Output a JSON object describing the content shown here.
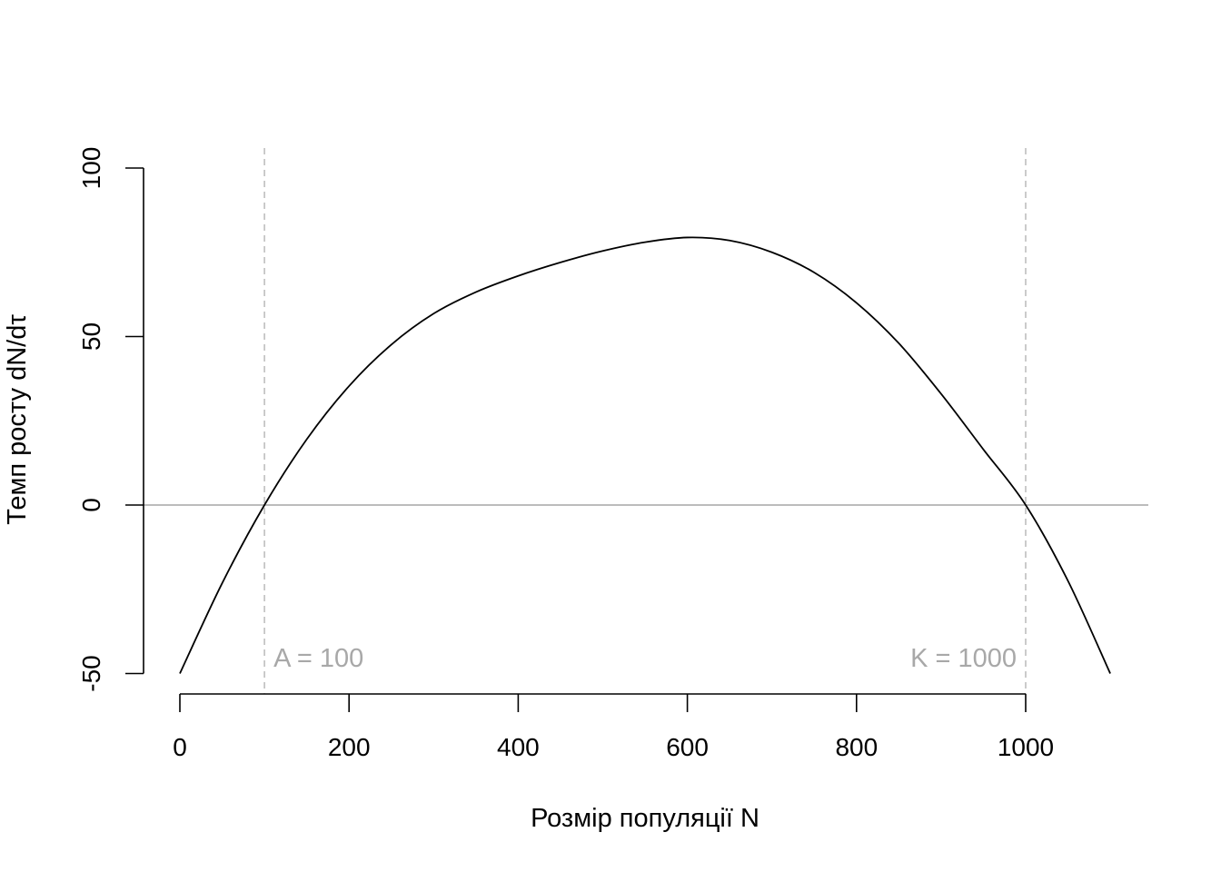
{
  "chart_data": {
    "type": "line",
    "title": "",
    "xlabel": "Розмір популяції N",
    "ylabel": "Темп росту dN/dτ",
    "xlim": [
      0,
      1100
    ],
    "ylim": [
      -50,
      100
    ],
    "xticks": [
      0,
      200,
      400,
      600,
      800,
      1000
    ],
    "yticks": [
      -50,
      0,
      50,
      100
    ],
    "xtick_labels": [
      "0",
      "200",
      "400",
      "600",
      "800",
      "1000"
    ],
    "ytick_labels": [
      "-50",
      "0",
      "50",
      "100"
    ],
    "grid": false,
    "legend": "none",
    "series": [
      {
        "x": [
          0,
          50,
          100,
          150,
          200,
          250,
          300,
          350,
          400,
          450,
          500,
          550,
          600,
          650,
          700,
          750,
          800,
          850,
          900,
          950,
          1000,
          1050,
          1100
        ],
        "y": [
          -50,
          -23.2,
          0,
          19.5,
          35.3,
          47.6,
          56.8,
          63.2,
          68.0,
          72.0,
          75.4,
          78.0,
          79.4,
          78.5,
          75.0,
          69.0,
          60.0,
          48.0,
          33.0,
          16.5,
          0,
          -22.5,
          -50
        ],
        "color": "#000000"
      }
    ],
    "reference_lines": {
      "horizontal": {
        "y": 0,
        "color": "#a6a6a6"
      },
      "vertical": [
        {
          "x": 100,
          "color": "#bebebe",
          "style": "dashed",
          "label": "A = 100"
        },
        {
          "x": 1000,
          "color": "#bebebe",
          "style": "dashed",
          "label": "K = 1000"
        }
      ]
    },
    "colors": {
      "curve": "#000000",
      "axis": "#000000",
      "zero_line": "#a6a6a6",
      "vlines": "#bebebe",
      "annotation_text": "#a8a8a8"
    }
  }
}
